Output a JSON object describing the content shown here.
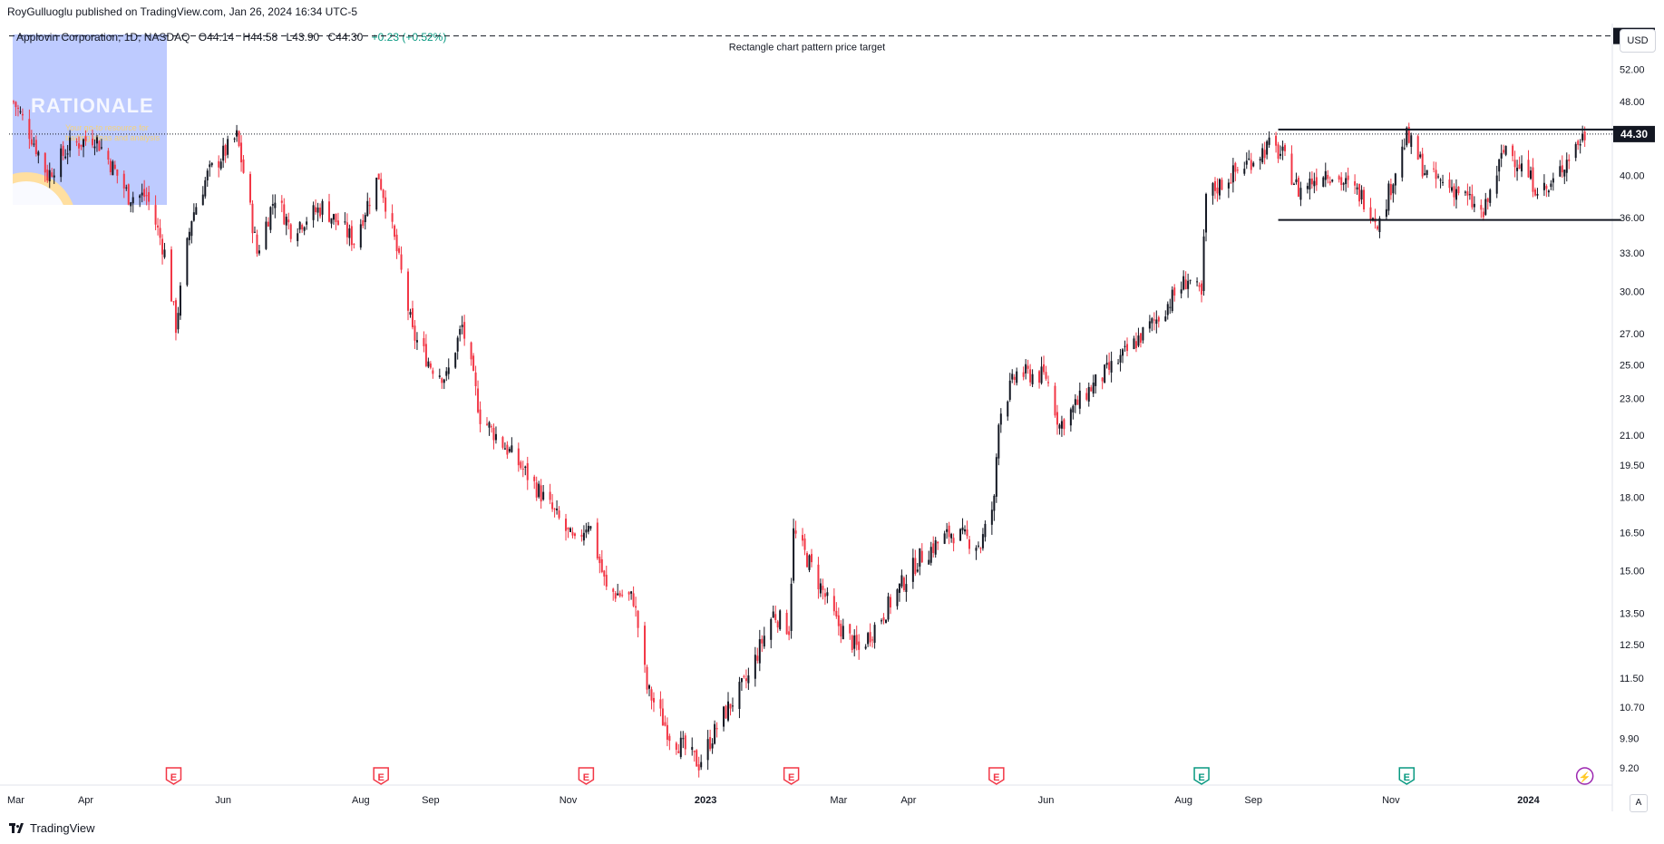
{
  "header": {
    "published": "RoyGulluoglu published on TradingView.com, Jan 26, 2024 16:34 UTC-5"
  },
  "legend": {
    "symbol": "Applovin Corporation, 1D, NASDAQ",
    "open": "O44.14",
    "high": "H44.58",
    "low": "L43.90",
    "close": "C44.30",
    "change": "+0.23 (+0.52%)"
  },
  "watermark": {
    "title": "RATIONALE",
    "subtitle": "Your go-to resource for trading ideas and analysis"
  },
  "currency": "USD",
  "footer": {
    "brand": "TradingView",
    "auto": "A"
  },
  "colors": {
    "up": "#131722",
    "down": "#f23645",
    "earnings_past": "#f23645",
    "earnings_future": "#089981",
    "dividend": "#9c27b0"
  },
  "chart_data": {
    "type": "candlestick",
    "title": "Applovin Corporation, 1D, NASDAQ",
    "y_scale": "log",
    "ylim": [
      8.9,
      58
    ],
    "y_ticks": [
      9.2,
      9.9,
      10.7,
      11.5,
      12.5,
      13.5,
      15.0,
      16.5,
      18.0,
      19.5,
      21.0,
      23.0,
      25.0,
      27.0,
      30.0,
      33.0,
      36.0,
      40.0,
      48.0,
      52.0
    ],
    "x_labels": [
      "Mar",
      "Apr",
      "Jun",
      "Aug",
      "Sep",
      "Nov",
      "2023",
      "Mar",
      "Apr",
      "Jun",
      "Aug",
      "Sep",
      "Nov",
      "2024"
    ],
    "x_label_dates": [
      "2022-03-01",
      "2022-04-01",
      "2022-06-01",
      "2022-08-01",
      "2022-09-01",
      "2022-11-01",
      "2023-01-01",
      "2023-03-01",
      "2023-04-01",
      "2023-06-01",
      "2023-08-01",
      "2023-09-01",
      "2023-11-01",
      "2024-01-01"
    ],
    "x_range": [
      "2022-02-26",
      "2024-02-06"
    ],
    "last_price": {
      "value": 44.3,
      "label": "44.30"
    },
    "price_target": {
      "value": 56.5,
      "label": "56.50",
      "text": "Rectangle chart pattern price target"
    },
    "rectangle": {
      "top": 44.8,
      "bottom": 35.8,
      "start": "2023-09-12",
      "end": "2024-01-26"
    },
    "earnings_markers": [
      {
        "date": "2022-05-10",
        "label": "E",
        "type": "past"
      },
      {
        "date": "2022-08-10",
        "label": "E",
        "type": "past"
      },
      {
        "date": "2022-11-09",
        "label": "E",
        "type": "past"
      },
      {
        "date": "2023-02-08",
        "label": "E",
        "type": "past"
      },
      {
        "date": "2023-05-10",
        "label": "E",
        "type": "past"
      },
      {
        "date": "2023-08-09",
        "label": "E",
        "type": "future"
      },
      {
        "date": "2023-11-08",
        "label": "E",
        "type": "future"
      },
      {
        "date": "2024-01-26",
        "label": "⚡",
        "type": "dividend"
      }
    ],
    "price_path": [
      [
        "2022-02-28",
        48
      ],
      [
        "2022-03-08",
        44
      ],
      [
        "2022-03-15",
        40
      ],
      [
        "2022-03-25",
        43
      ],
      [
        "2022-04-05",
        44
      ],
      [
        "2022-04-20",
        38
      ],
      [
        "2022-04-28",
        38
      ],
      [
        "2022-05-06",
        33
      ],
      [
        "2022-05-11",
        27.5
      ],
      [
        "2022-05-18",
        36
      ],
      [
        "2022-05-25",
        40
      ],
      [
        "2022-06-07",
        44
      ],
      [
        "2022-06-16",
        33
      ],
      [
        "2022-06-24",
        38
      ],
      [
        "2022-07-01",
        35
      ],
      [
        "2022-07-15",
        37
      ],
      [
        "2022-07-29",
        34
      ],
      [
        "2022-08-09",
        40
      ],
      [
        "2022-08-16",
        34
      ],
      [
        "2022-08-24",
        27
      ],
      [
        "2022-09-01",
        25
      ],
      [
        "2022-09-08",
        24.2
      ],
      [
        "2022-09-15",
        27.5
      ],
      [
        "2022-09-23",
        22
      ],
      [
        "2022-10-07",
        20
      ],
      [
        "2022-10-21",
        18
      ],
      [
        "2022-11-04",
        16
      ],
      [
        "2022-11-10",
        17
      ],
      [
        "2022-11-18",
        14.3
      ],
      [
        "2022-11-30",
        14
      ],
      [
        "2022-12-06",
        11.2
      ],
      [
        "2022-12-16",
        10
      ],
      [
        "2022-12-29",
        9.3
      ],
      [
        "2023-01-09",
        10.5
      ],
      [
        "2023-01-20",
        11.5
      ],
      [
        "2023-01-31",
        13.5
      ],
      [
        "2023-02-07",
        13.0
      ],
      [
        "2023-02-09",
        16.5
      ],
      [
        "2023-02-16",
        15.3
      ],
      [
        "2023-02-28",
        13.2
      ],
      [
        "2023-03-10",
        12.3
      ],
      [
        "2023-03-21",
        13.5
      ],
      [
        "2023-04-06",
        15.5
      ],
      [
        "2023-04-20",
        16.5
      ],
      [
        "2023-05-03",
        16.0
      ],
      [
        "2023-05-09",
        17.8
      ],
      [
        "2023-05-11",
        22.0
      ],
      [
        "2023-05-19",
        24.5
      ],
      [
        "2023-06-01",
        24.3
      ],
      [
        "2023-06-07",
        21.5
      ],
      [
        "2023-06-20",
        23.5
      ],
      [
        "2023-07-05",
        25.5
      ],
      [
        "2023-07-20",
        28.0
      ],
      [
        "2023-08-03",
        31.0
      ],
      [
        "2023-08-09",
        29.5
      ],
      [
        "2023-08-11",
        38.0
      ],
      [
        "2023-08-25",
        40.5
      ],
      [
        "2023-09-08",
        43.0
      ],
      [
        "2023-09-14",
        42.0
      ],
      [
        "2023-09-21",
        38.5
      ],
      [
        "2023-10-03",
        40.5
      ],
      [
        "2023-10-19",
        38.0
      ],
      [
        "2023-10-27",
        35.5
      ],
      [
        "2023-11-08",
        44.0
      ],
      [
        "2023-11-17",
        40.0
      ],
      [
        "2023-12-01",
        38.5
      ],
      [
        "2023-12-12",
        36.2
      ],
      [
        "2023-12-22",
        43.0
      ],
      [
        "2024-01-04",
        39.0
      ],
      [
        "2024-01-10",
        38.5
      ],
      [
        "2024-01-19",
        42.0
      ],
      [
        "2024-01-26",
        44.3
      ]
    ]
  }
}
